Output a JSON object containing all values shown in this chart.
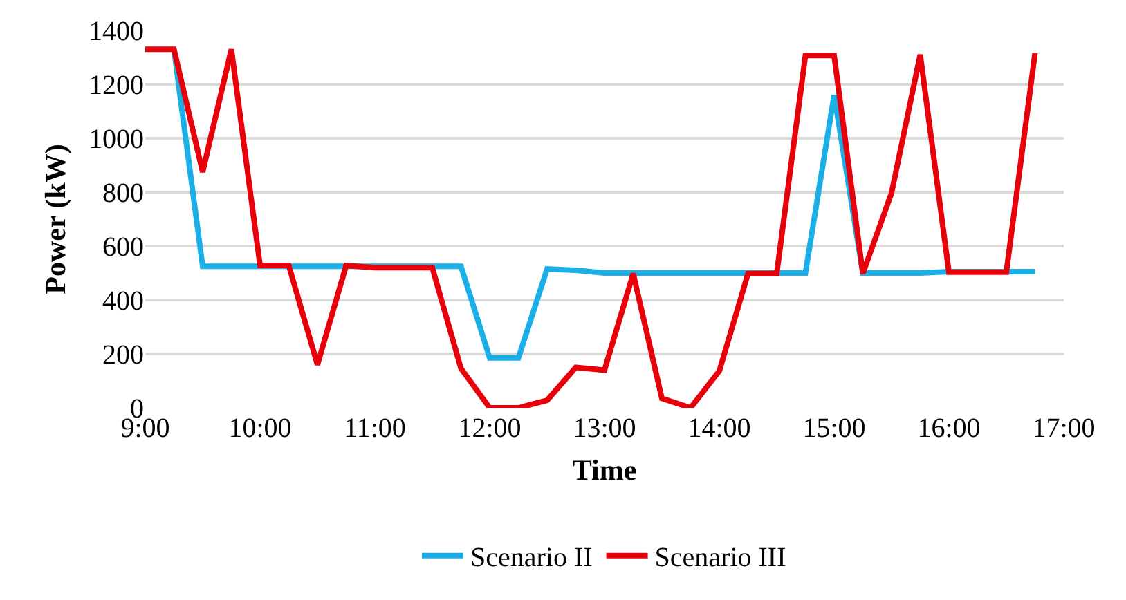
{
  "chart_data": {
    "type": "line",
    "xlabel": "Time",
    "ylabel": "Power (kW)",
    "x": [
      9,
      9.25,
      9.5,
      9.75,
      10,
      10.25,
      10.5,
      10.75,
      11,
      11.25,
      11.5,
      11.75,
      12,
      12.25,
      12.5,
      12.75,
      13,
      13.25,
      13.5,
      13.75,
      14,
      14.25,
      14.5,
      14.75,
      15,
      15.25,
      15.5,
      15.75,
      16,
      16.25,
      16.5,
      16.75
    ],
    "series": [
      {
        "name": "Scenario II",
        "color": "#1aafe6",
        "values": [
          null,
          1330,
          525,
          525,
          525,
          525,
          525,
          525,
          525,
          525,
          525,
          525,
          185,
          185,
          515,
          510,
          500,
          500,
          500,
          500,
          500,
          500,
          500,
          500,
          1160,
          500,
          500,
          500,
          505,
          505,
          505,
          505
        ]
      },
      {
        "name": "Scenario III",
        "color": "#e8000b",
        "values": [
          1330,
          1330,
          875,
          1330,
          528,
          528,
          160,
          528,
          520,
          520,
          520,
          146,
          0,
          0,
          28,
          150,
          140,
          498,
          35,
          0,
          137,
          498,
          498,
          1307,
          1307,
          498,
          797,
          1310,
          503,
          503,
          503,
          1316
        ]
      }
    ],
    "xlim": [
      9,
      17
    ],
    "xticks": [
      {
        "value": 9,
        "label": "9:00"
      },
      {
        "value": 10,
        "label": "10:00"
      },
      {
        "value": 11,
        "label": "11:00"
      },
      {
        "value": 12,
        "label": "12:00"
      },
      {
        "value": 13,
        "label": "13:00"
      },
      {
        "value": 14,
        "label": "14:00"
      },
      {
        "value": 15,
        "label": "15:00"
      },
      {
        "value": 16,
        "label": "16:00"
      },
      {
        "value": 17,
        "label": "17:00"
      }
    ],
    "ylim": [
      0,
      1400
    ],
    "yticks": [
      0,
      200,
      400,
      600,
      800,
      1000,
      1200,
      1400
    ],
    "grid": "y",
    "legend": "bottom",
    "marker": "none",
    "line_style": "solid"
  }
}
